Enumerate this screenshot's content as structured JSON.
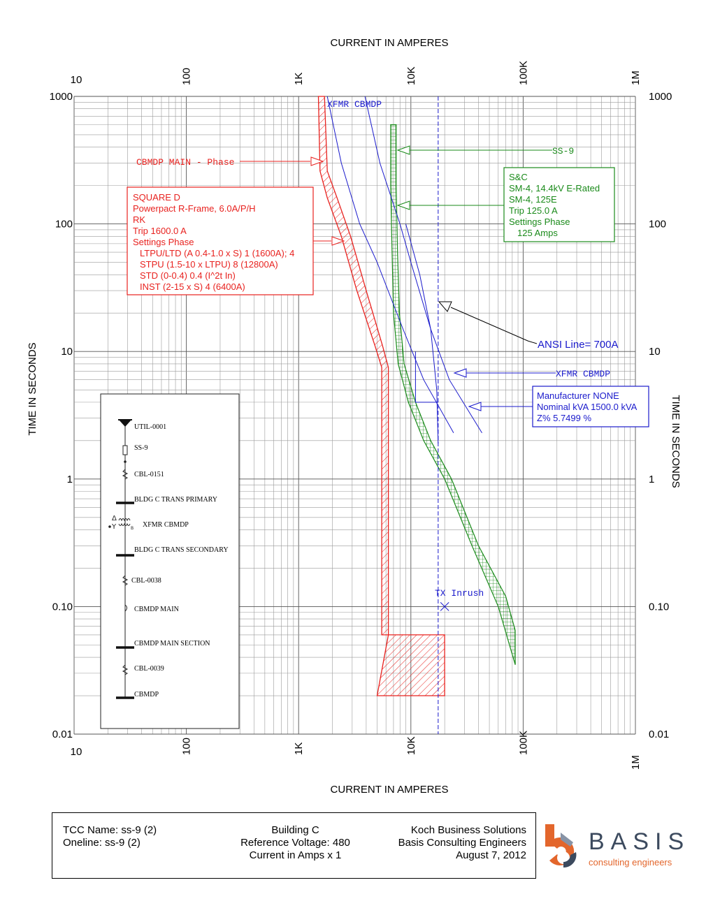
{
  "chart_data": {
    "type": "line",
    "scale": "log-log",
    "xlabel": "CURRENT IN AMPERES",
    "ylabel": "TIME IN SECONDS",
    "xlim": [
      10,
      1000000
    ],
    "ylim": [
      0.01,
      1000
    ],
    "x_tick_labels": [
      {
        "v": 10,
        "label": "10"
      },
      {
        "v": 100,
        "label": "100"
      },
      {
        "v": 1000,
        "label": "1K"
      },
      {
        "v": 10000,
        "label": "10K"
      },
      {
        "v": 100000,
        "label": "100K"
      },
      {
        "v": 1000000,
        "label": "1M"
      }
    ],
    "y_tick_labels": [
      {
        "v": 1000,
        "label": "1000"
      },
      {
        "v": 100,
        "label": "100"
      },
      {
        "v": 10,
        "label": "10"
      },
      {
        "v": 1,
        "label": "1"
      },
      {
        "v": 0.1,
        "label": "0.10"
      },
      {
        "v": 0.01,
        "label": "0.01"
      }
    ],
    "colors": {
      "breaker": "#e8221f",
      "fuse": "#1a8a1a",
      "xfmr": "#1a1acc",
      "ansi": "#000000"
    },
    "breaker_band": {
      "lower": [
        [
          1500,
          1000
        ],
        [
          1550,
          260
        ],
        [
          1800,
          160
        ],
        [
          2400,
          80
        ],
        [
          3300,
          30
        ],
        [
          4800,
          11
        ],
        [
          5500,
          7.5
        ],
        [
          5500,
          0.06
        ],
        [
          20000,
          0.06
        ],
        [
          20000,
          0.02
        ],
        [
          5000,
          0.02
        ]
      ],
      "upper": [
        [
          1700,
          1000
        ],
        [
          1800,
          260
        ],
        [
          2200,
          160
        ],
        [
          2900,
          80
        ],
        [
          4000,
          30
        ],
        [
          5600,
          11
        ],
        [
          6300,
          7.5
        ],
        [
          6300,
          0.06
        ]
      ]
    },
    "fuse_band": {
      "left": [
        [
          6600,
          600
        ],
        [
          6600,
          200
        ],
        [
          6800,
          60
        ],
        [
          7000,
          20
        ],
        [
          7700,
          8
        ],
        [
          9500,
          4
        ],
        [
          13000,
          2
        ],
        [
          20000,
          1
        ],
        [
          35000,
          0.3
        ],
        [
          60000,
          0.1
        ],
        [
          85000,
          0.035
        ]
      ],
      "right": [
        [
          7400,
          600
        ],
        [
          7400,
          200
        ],
        [
          7600,
          60
        ],
        [
          7900,
          20
        ],
        [
          8700,
          8
        ],
        [
          11000,
          4
        ],
        [
          15000,
          2
        ],
        [
          23000,
          1
        ],
        [
          40000,
          0.3
        ],
        [
          70000,
          0.12
        ],
        [
          85000,
          0.065
        ]
      ]
    },
    "xfmr_curves": [
      [
        [
          1800,
          1000
        ],
        [
          2400,
          300
        ],
        [
          3500,
          100
        ],
        [
          5000,
          50
        ],
        [
          8500,
          15
        ],
        [
          13000,
          6
        ],
        [
          24000,
          2.3
        ]
      ],
      [
        [
          3900,
          1000
        ],
        [
          5300,
          300
        ],
        [
          8000,
          100
        ],
        [
          10000,
          50
        ],
        [
          15000,
          15
        ],
        [
          22000,
          6
        ],
        [
          43000,
          2.3
        ]
      ],
      [
        [
          9000,
          100
        ],
        [
          12000,
          40
        ],
        [
          15000,
          15
        ],
        [
          17000,
          5
        ],
        [
          17500,
          1.9
        ]
      ]
    ],
    "ansi_step": [
      [
        11000,
        10
      ],
      [
        11000,
        4
      ],
      [
        17500,
        4
      ]
    ],
    "inrush_line_x": 17500,
    "inrush_point": [
      20000,
      0.1
    ],
    "labels": {
      "xfmr_top": "XFMR CBMDP",
      "cbmdp_main_phase": "CBMDP MAIN - Phase",
      "ss9": "SS-9",
      "ansi_line": "ANSI Line= 700A",
      "xfmr_cbmdp": "XFMR CBMDP",
      "tx_inrush": "TX Inrush"
    },
    "annotations": {
      "breaker_box": [
        "SQUARE D",
        "Powerpact R-Frame, 6.0A/P/H",
        "RK",
        "Trip 1600.0 A",
        "Settings Phase",
        "LTPU/LTD (A 0.4-1.0 x S) 1 (1600A); 4",
        "STPU (1.5-10 x LTPU) 8 (12800A)",
        "STD (0-0.4) 0.4 (I^2t In)",
        "INST (2-15 x S) 4 (6400A)"
      ],
      "fuse_box": [
        "S&C",
        "SM-4, 14.4kV E-Rated",
        "SM-4, 125E",
        "Trip 125.0 A",
        "Settings Phase",
        "125 Amps"
      ],
      "xfmr_box": [
        "Manufacturer NONE",
        "Nominal kVA 1500.0 kVA",
        "Z% 5.7499 %"
      ]
    }
  },
  "oneline": {
    "items": [
      "UTIL-0001",
      "SS-9",
      "CBL-0151",
      "BLDG C TRANS PRIMARY",
      "XFMR CBMDP",
      "BLDG C TRANS SECONDARY",
      "CBL-0038",
      "CBMDP MAIN",
      "CBMDP MAIN SECTION",
      "CBL-0039",
      "CBMDP"
    ],
    "xfmr_sym": {
      "delta": "Δ",
      "wye": "Y",
      "b": "B"
    }
  },
  "footer": {
    "tcc_name": "TCC Name:  ss-9 (2)",
    "oneline": "Oneline: ss-9 (2)",
    "building": "Building C",
    "ref_voltage": "Reference Voltage: 480",
    "current": "Current in Amps  x 1",
    "company": "Koch Business Solutions",
    "engineer": "Basis Consulting Engineers",
    "date": "August 7, 2012"
  },
  "logo": {
    "word": "BASIS",
    "sub": "consulting engineers",
    "orange": "#e3662c",
    "slate": "#3c4a5e"
  }
}
